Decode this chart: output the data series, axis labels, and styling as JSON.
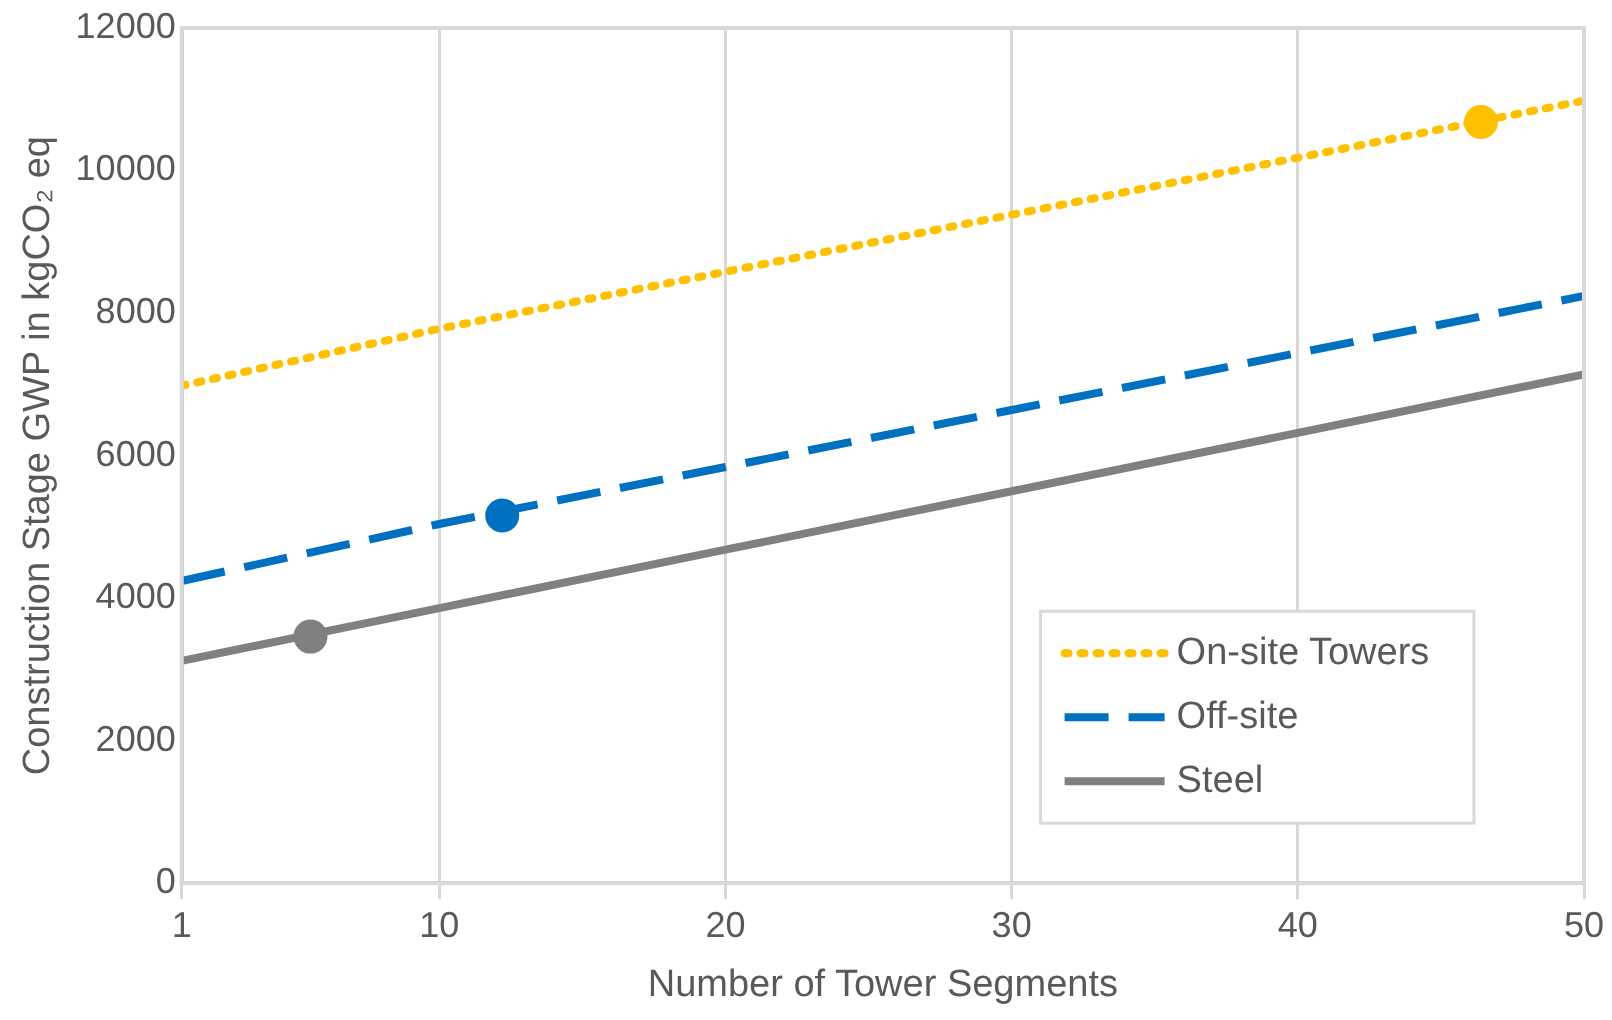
{
  "chart_data": {
    "type": "line",
    "xlabel": "Number of Tower Segments",
    "ylabel": "Construction Stage GWP in kgCO₂ eq",
    "series": [
      {
        "name": "On-site Towers",
        "color": "#ffc000",
        "line_style": "dotted",
        "x": [
          1,
          10,
          20,
          30,
          40,
          50
        ],
        "values": [
          6980,
          7780,
          8580,
          9380,
          10180,
          10980
        ]
      },
      {
        "name": "Off-site",
        "color": "#0070c0",
        "line_style": "dashed",
        "x": [
          1,
          10,
          20,
          30,
          40,
          50
        ],
        "values": [
          4240,
          5040,
          5840,
          6640,
          7440,
          8240
        ]
      },
      {
        "name": "Steel",
        "color": "#808080",
        "line_style": "solid",
        "x": [
          1,
          10,
          20,
          30,
          40,
          50
        ],
        "values": [
          3120,
          3860,
          4680,
          5500,
          6320,
          7140
        ]
      },
      {
        "type": "scatter",
        "color": "#ffc000",
        "marker": "circle",
        "x": [
          46.4
        ],
        "values": [
          10680
        ]
      },
      {
        "type": "scatter",
        "color": "#0070c0",
        "marker": "circle",
        "x": [
          12.2
        ],
        "values": [
          5160
        ]
      },
      {
        "type": "scatter",
        "color": "#808080",
        "marker": "circle",
        "x": [
          5.5
        ],
        "values": [
          3460
        ]
      }
    ],
    "xlim": [
      1,
      50
    ],
    "xticks": [
      1,
      10,
      20,
      30,
      40,
      50
    ],
    "ylim": [
      0,
      12000
    ],
    "yticks": [
      0,
      2000,
      4000,
      6000,
      8000,
      10000,
      12000
    ],
    "grid": "x",
    "legend": "bottom right"
  }
}
